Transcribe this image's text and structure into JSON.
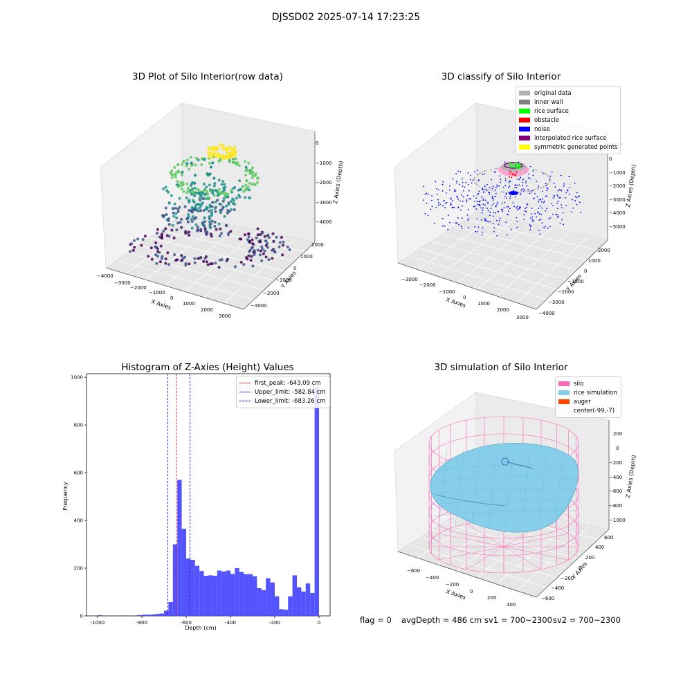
{
  "figure": {
    "title": "DJSSD02 2025-07-14 17:23:25",
    "footer": {
      "flag": "flag = 0",
      "avg_depth": "avgDepth = 486 cm",
      "sv1": "sv1 = 700~2300",
      "sv2": "sv2 = 700~2300"
    }
  },
  "chart_data": [
    {
      "type": "scatter",
      "kind": "3d-scatter",
      "title": "3D Plot of Silo Interior(row data)",
      "xlabel": "X Axies",
      "ylabel": "Y Axies",
      "zlabel": "Z Axies (Depth)",
      "xticks": [
        "−4000",
        "−3000",
        "−2000",
        "−1000",
        "0",
        "1000",
        "2000",
        "3000"
      ],
      "yticks": [
        "−3000",
        "−2000",
        "−1000",
        "0",
        "1000",
        "2000"
      ],
      "zticks": [
        "−4000",
        "−3000",
        "−2000",
        "−1000",
        "0"
      ],
      "xlim": [
        -4000,
        3500
      ],
      "ylim": [
        -3500,
        2500
      ],
      "zlim": [
        -4700,
        200
      ],
      "colormap": "viridis",
      "colormap_stops": [
        "#440154",
        "#3b528b",
        "#21918c",
        "#5ec962",
        "#fde725"
      ]
    },
    {
      "type": "scatter",
      "kind": "3d-scatter",
      "title": "3D classify of Silo Interior",
      "xlabel": "X Axies",
      "ylabel": "Y Axies",
      "zlabel": "Z Axies (Depth)",
      "xticks": [
        "−3000",
        "−2000",
        "−1000",
        "0",
        "1000",
        "2000",
        "3000"
      ],
      "yticks": [
        "−4000",
        "−3000",
        "−2000",
        "−1000",
        "0",
        "1000",
        "2000"
      ],
      "zticks": [
        "−5000",
        "−4000",
        "−3000",
        "−2000",
        "−1000",
        "0",
        "1000"
      ],
      "legend_position": "upper-right",
      "legend": [
        {
          "label": "original data",
          "color": "#b3b3b3"
        },
        {
          "label": "inner wall",
          "color": "#808080"
        },
        {
          "label": "rice surface",
          "color": "#00ff00"
        },
        {
          "label": "obstacle",
          "color": "#ff0000"
        },
        {
          "label": "noise",
          "color": "#0000ff"
        },
        {
          "label": "interpolated rice surface",
          "color": "#800080"
        },
        {
          "label": "symmetric generated points",
          "color": "#ffff00"
        }
      ]
    },
    {
      "type": "bar",
      "kind": "histogram",
      "title": "Histogram of Z-Axies (Height) Values",
      "xlabel": "Depth (cm)",
      "ylabel": "Frequency",
      "xlim": [
        -1050,
        50
      ],
      "ylim": [
        0,
        1015
      ],
      "bin_width": 20,
      "color": "#4b4bff",
      "xticks": [
        -1000,
        -800,
        -600,
        -400,
        -200,
        0
      ],
      "yticks": [
        0,
        200,
        400,
        600,
        800,
        1000
      ],
      "bins": [
        {
          "x0": -1000,
          "value": 3
        },
        {
          "x0": -900,
          "value": 2
        },
        {
          "x0": -820,
          "value": 3
        },
        {
          "x0": -800,
          "value": 5
        },
        {
          "x0": -780,
          "value": 5
        },
        {
          "x0": -760,
          "value": 6
        },
        {
          "x0": -740,
          "value": 8
        },
        {
          "x0": -720,
          "value": 10
        },
        {
          "x0": -700,
          "value": 22
        },
        {
          "x0": -680,
          "value": 58
        },
        {
          "x0": -660,
          "value": 300
        },
        {
          "x0": -640,
          "value": 570
        },
        {
          "x0": -620,
          "value": 365
        },
        {
          "x0": -600,
          "value": 240
        },
        {
          "x0": -580,
          "value": 235
        },
        {
          "x0": -560,
          "value": 210
        },
        {
          "x0": -540,
          "value": 188
        },
        {
          "x0": -520,
          "value": 168
        },
        {
          "x0": -500,
          "value": 170
        },
        {
          "x0": -480,
          "value": 168
        },
        {
          "x0": -460,
          "value": 190
        },
        {
          "x0": -440,
          "value": 186
        },
        {
          "x0": -420,
          "value": 190
        },
        {
          "x0": -400,
          "value": 176
        },
        {
          "x0": -380,
          "value": 200
        },
        {
          "x0": -360,
          "value": 184
        },
        {
          "x0": -340,
          "value": 175
        },
        {
          "x0": -320,
          "value": 175
        },
        {
          "x0": -300,
          "value": 166
        },
        {
          "x0": -280,
          "value": 116
        },
        {
          "x0": -260,
          "value": 108
        },
        {
          "x0": -240,
          "value": 158
        },
        {
          "x0": -220,
          "value": 140
        },
        {
          "x0": -200,
          "value": 82
        },
        {
          "x0": -180,
          "value": 28
        },
        {
          "x0": -160,
          "value": 26
        },
        {
          "x0": -140,
          "value": 82
        },
        {
          "x0": -120,
          "value": 170
        },
        {
          "x0": -100,
          "value": 120
        },
        {
          "x0": -80,
          "value": 102
        },
        {
          "x0": -60,
          "value": 136
        },
        {
          "x0": -40,
          "value": 96
        },
        {
          "x0": -20,
          "value": 960
        }
      ],
      "vlines": [
        {
          "label": "first_peak: -643.09 cm",
          "x": -643.09,
          "color": "#ff0000"
        },
        {
          "label": "Upper_limit: -582.84 cm",
          "x": -582.84,
          "color": "#0000ff"
        },
        {
          "label": "Lower_limit: -683.26 cm",
          "x": -683.26,
          "color": "#0000ff"
        }
      ],
      "legend_position": "upper-right"
    },
    {
      "type": "area",
      "kind": "3d-surface",
      "title": "3D simulation of Silo Interior",
      "xlabel": "X Axies",
      "ylabel": "Y Axies",
      "zlabel": "Z Axies (Depth)",
      "xticks": [
        "−600",
        "−400",
        "−200",
        "0",
        "200",
        "400"
      ],
      "yticks": [
        "−600",
        "−400",
        "−200",
        "0",
        "200",
        "400",
        "600"
      ],
      "zticks": [
        "−1000",
        "−800",
        "−600",
        "−400",
        "−200",
        "0",
        "200"
      ],
      "legend_position": "upper-right",
      "legend": [
        {
          "label": "silo",
          "color": "#ff69b4"
        },
        {
          "label": "rice simulation",
          "color": "#87ceeb"
        },
        {
          "label": "auger",
          "color": "#ff4500"
        },
        {
          "label": "center(-99,-7)",
          "color": ""
        }
      ]
    }
  ]
}
